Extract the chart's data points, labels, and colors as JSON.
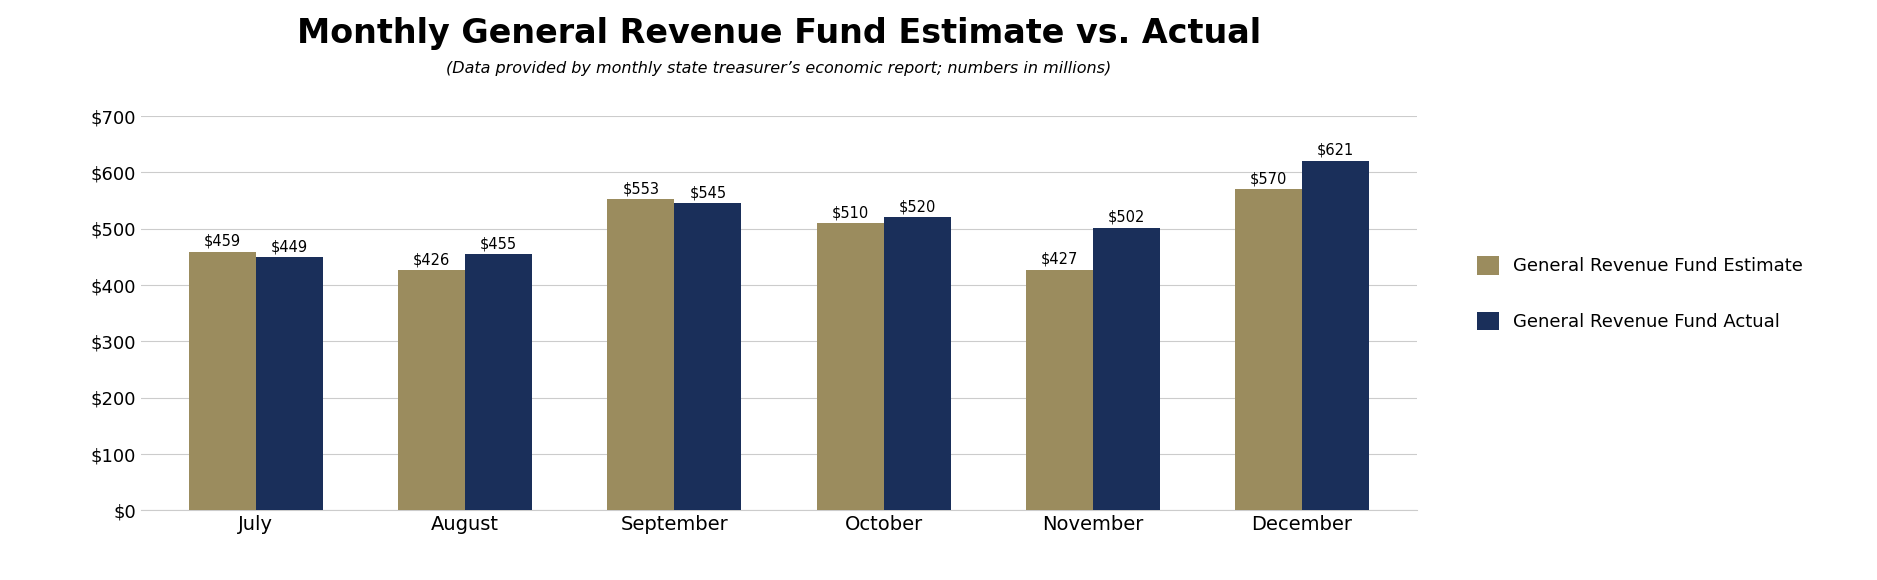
{
  "title": "Monthly General Revenue Fund Estimate vs. Actual",
  "subtitle": "(Data provided by monthly state treasurer’s economic report; numbers in millions)",
  "categories": [
    "July",
    "August",
    "September",
    "October",
    "November",
    "December"
  ],
  "estimate_values": [
    459,
    426,
    553,
    510,
    427,
    570
  ],
  "actual_values": [
    449,
    455,
    545,
    520,
    502,
    621
  ],
  "estimate_color": "#9b8c5e",
  "actual_color": "#1a2f5a",
  "ylim": [
    0,
    700
  ],
  "yticks": [
    0,
    100,
    200,
    300,
    400,
    500,
    600,
    700
  ],
  "legend_estimate": "General Revenue Fund Estimate",
  "legend_actual": "General Revenue Fund Actual",
  "bar_width": 0.32,
  "annotation_fontsize": 10.5,
  "xtick_fontsize": 14,
  "ytick_fontsize": 13,
  "title_fontsize": 24,
  "subtitle_fontsize": 11.5,
  "legend_fontsize": 13,
  "background_color": "#ffffff",
  "grid_color": "#cccccc"
}
